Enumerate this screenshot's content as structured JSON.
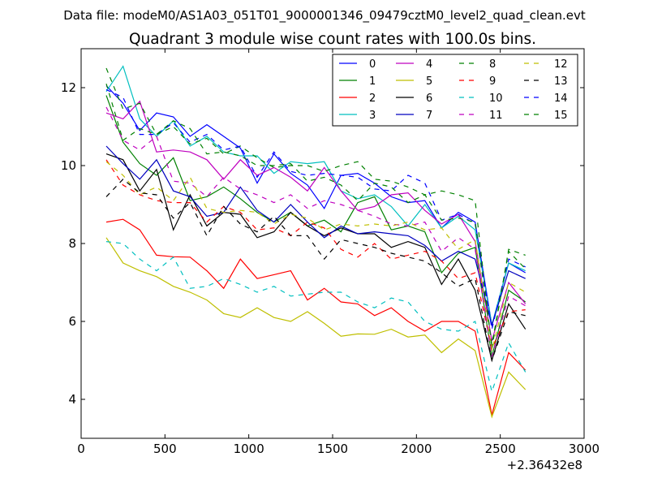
{
  "chart_data": {
    "type": "line",
    "suptitle": "Data file: modeM0/AS1A03_051T01_9000001346_09479cztM0_level2_quad_clean.evt",
    "title": "Quadrant 3 module wise count rates with 100.0s bins.",
    "xlabel": "",
    "ylabel": "",
    "x_offset_label": "+2.36432e8",
    "xlim": [
      0,
      3000
    ],
    "ylim": [
      3,
      13
    ],
    "xticks": [
      0,
      500,
      1000,
      1500,
      2000,
      2500,
      3000
    ],
    "yticks": [
      4,
      6,
      8,
      10,
      12
    ],
    "x": [
      150,
      250,
      350,
      450,
      550,
      650,
      750,
      850,
      950,
      1050,
      1150,
      1250,
      1350,
      1450,
      1550,
      1650,
      1750,
      1850,
      1950,
      2050,
      2150,
      2250,
      2350,
      2450,
      2550,
      2650
    ],
    "series": [
      {
        "name": "0",
        "color": "#0000ff",
        "dash": "solid",
        "values": [
          12.05,
          11.6,
          10.9,
          11.35,
          11.25,
          10.75,
          11.05,
          10.75,
          10.45,
          9.55,
          10.3,
          9.8,
          9.5,
          8.9,
          9.75,
          9.8,
          9.55,
          9.2,
          9.05,
          9.1,
          8.4,
          8.8,
          8.55,
          5.9,
          7.5,
          7.25
        ]
      },
      {
        "name": "1",
        "color": "#008000",
        "dash": "solid",
        "values": [
          11.8,
          10.6,
          10.05,
          9.75,
          10.2,
          9.1,
          9.2,
          9.45,
          9.15,
          8.8,
          8.55,
          8.8,
          8.45,
          8.6,
          8.3,
          9.05,
          9.2,
          8.35,
          8.45,
          8.3,
          7.25,
          7.75,
          7.9,
          5.1,
          6.8,
          6.5
        ]
      },
      {
        "name": "2",
        "color": "#ff0000",
        "dash": "solid",
        "values": [
          8.55,
          8.62,
          8.35,
          7.7,
          7.66,
          7.65,
          7.3,
          6.85,
          7.6,
          7.1,
          7.2,
          7.3,
          6.55,
          6.85,
          6.5,
          6.45,
          6.15,
          6.35,
          6.0,
          5.75,
          6.0,
          6.0,
          5.75,
          3.6,
          5.2,
          4.75
        ]
      },
      {
        "name": "3",
        "color": "#00bfbf",
        "dash": "solid",
        "values": [
          11.9,
          12.55,
          11.2,
          10.75,
          11.15,
          10.5,
          10.75,
          10.35,
          10.25,
          10.25,
          9.8,
          10.1,
          10.05,
          10.1,
          9.35,
          9.15,
          9.25,
          8.95,
          8.45,
          9.0,
          8.4,
          8.7,
          8.35,
          5.9,
          7.5,
          7.3
        ]
      },
      {
        "name": "4",
        "color": "#bf00bf",
        "dash": "solid",
        "values": [
          11.35,
          11.2,
          11.65,
          10.35,
          10.4,
          10.35,
          10.15,
          9.65,
          10.15,
          9.75,
          9.95,
          9.7,
          9.35,
          9.95,
          9.35,
          8.85,
          8.95,
          9.25,
          9.3,
          8.85,
          8.5,
          8.75,
          8.05,
          5.5,
          7.0,
          6.45
        ]
      },
      {
        "name": "5",
        "color": "#bfbf00",
        "dash": "solid",
        "values": [
          8.15,
          7.5,
          7.3,
          7.15,
          6.9,
          6.75,
          6.55,
          6.2,
          6.1,
          6.35,
          6.1,
          6.0,
          6.25,
          5.95,
          5.62,
          5.68,
          5.67,
          5.8,
          5.6,
          5.65,
          5.2,
          5.55,
          5.25,
          3.55,
          4.7,
          4.25
        ]
      },
      {
        "name": "6",
        "color": "#000000",
        "dash": "solid",
        "values": [
          10.3,
          10.15,
          9.35,
          9.9,
          8.35,
          9.25,
          8.45,
          8.8,
          8.75,
          8.15,
          8.3,
          8.8,
          8.45,
          8.2,
          8.4,
          8.25,
          8.25,
          7.9,
          8.05,
          7.9,
          6.95,
          7.6,
          6.8,
          5.0,
          6.45,
          5.8
        ]
      },
      {
        "name": "7",
        "color": "#0000bf",
        "dash": "solid",
        "values": [
          10.5,
          10.05,
          9.65,
          10.15,
          9.35,
          9.2,
          8.7,
          8.8,
          9.45,
          8.85,
          8.55,
          9.0,
          8.55,
          8.15,
          8.45,
          8.25,
          8.3,
          8.25,
          8.2,
          7.95,
          7.55,
          7.8,
          7.6,
          5.9,
          7.3,
          7.1
        ]
      },
      {
        "name": "8",
        "color": "#008000",
        "dash": "dashed",
        "values": [
          12.5,
          11.45,
          11.6,
          10.8,
          11.0,
          10.55,
          10.7,
          10.3,
          10.5,
          10.2,
          9.95,
          10.0,
          10.0,
          9.85,
          10.0,
          10.1,
          9.65,
          9.6,
          9.45,
          9.25,
          9.35,
          9.25,
          9.1,
          5.3,
          7.85,
          7.7
        ]
      },
      {
        "name": "9",
        "color": "#ff0000",
        "dash": "dashed",
        "values": [
          10.15,
          9.5,
          9.25,
          9.1,
          9.05,
          9.05,
          8.55,
          8.95,
          8.8,
          8.35,
          8.4,
          8.2,
          8.55,
          8.4,
          7.85,
          7.65,
          8.0,
          7.6,
          7.7,
          7.8,
          7.55,
          7.1,
          7.25,
          5.3,
          6.25,
          6.3
        ]
      },
      {
        "name": "10",
        "color": "#00bfbf",
        "dash": "dashed",
        "values": [
          8.05,
          8.0,
          7.6,
          7.3,
          7.65,
          6.85,
          6.9,
          7.1,
          6.95,
          6.75,
          6.9,
          6.65,
          6.7,
          6.75,
          6.75,
          6.5,
          6.35,
          6.6,
          6.5,
          6.0,
          5.8,
          5.75,
          6.0,
          4.2,
          5.45,
          4.7
        ]
      },
      {
        "name": "11",
        "color": "#bf00bf",
        "dash": "dashed",
        "values": [
          11.5,
          10.65,
          10.4,
          10.75,
          9.6,
          9.55,
          9.2,
          9.7,
          9.4,
          9.25,
          9.05,
          9.25,
          8.9,
          9.1,
          9.0,
          8.85,
          8.7,
          8.5,
          8.45,
          8.55,
          7.8,
          8.15,
          7.85,
          5.1,
          6.65,
          6.4
        ]
      },
      {
        "name": "12",
        "color": "#bfbf00",
        "dash": "dashed",
        "values": [
          10.1,
          9.75,
          9.25,
          9.45,
          9.1,
          9.7,
          8.9,
          8.8,
          8.85,
          8.8,
          8.5,
          8.75,
          8.65,
          8.35,
          8.5,
          8.45,
          8.5,
          8.45,
          8.55,
          8.35,
          8.4,
          7.85,
          8.1,
          5.25,
          7.0,
          6.75
        ]
      },
      {
        "name": "13",
        "color": "#000000",
        "dash": "dashed",
        "values": [
          9.2,
          9.65,
          9.3,
          9.25,
          8.65,
          9.05,
          8.2,
          8.95,
          8.5,
          8.3,
          8.7,
          8.2,
          8.2,
          7.6,
          8.1,
          8.0,
          7.9,
          7.75,
          7.65,
          7.55,
          7.25,
          6.9,
          7.1,
          5.0,
          6.25,
          6.15
        ]
      },
      {
        "name": "14",
        "color": "#0000ff",
        "dash": "dashed",
        "values": [
          11.95,
          11.75,
          10.8,
          10.8,
          11.1,
          10.6,
          10.8,
          10.4,
          10.5,
          9.7,
          10.35,
          9.85,
          9.75,
          9.8,
          9.75,
          9.7,
          9.4,
          9.35,
          9.75,
          9.55,
          8.6,
          8.75,
          8.5,
          5.8,
          7.6,
          7.4
        ]
      },
      {
        "name": "15",
        "color": "#008000",
        "dash": "dashed",
        "values": [
          12.1,
          10.65,
          10.95,
          10.8,
          11.15,
          10.95,
          10.3,
          10.35,
          10.25,
          10.0,
          10.0,
          10.05,
          9.6,
          9.7,
          9.5,
          9.1,
          9.55,
          9.45,
          9.05,
          9.25,
          8.6,
          8.65,
          8.55,
          5.4,
          7.8,
          7.35
        ]
      }
    ]
  }
}
